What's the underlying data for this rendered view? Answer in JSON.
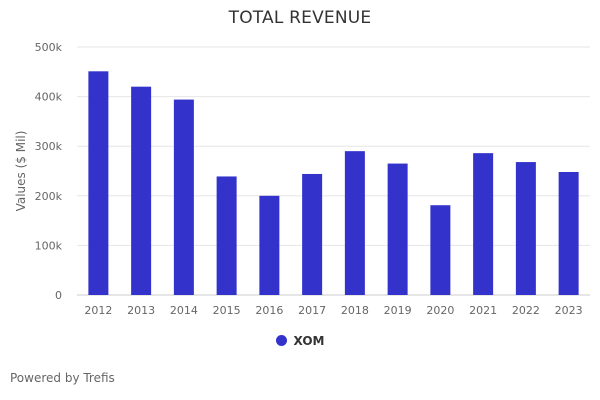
{
  "chart_data": {
    "type": "bar",
    "title": "TOTAL REVENUE",
    "xlabel": "",
    "ylabel": "Values ($ Mil)",
    "categories": [
      "2012",
      "2013",
      "2014",
      "2015",
      "2016",
      "2017",
      "2018",
      "2019",
      "2020",
      "2021",
      "2022",
      "2023"
    ],
    "series": [
      {
        "name": "XOM",
        "color": "#3333cc",
        "values": [
          451000,
          420000,
          394000,
          239000,
          200000,
          244000,
          290000,
          265000,
          181000,
          286000,
          268000,
          248000
        ]
      }
    ],
    "ylim": [
      0,
      500000
    ],
    "yticks": [
      0,
      100000,
      200000,
      300000,
      400000,
      500000
    ],
    "ytick_labels": [
      "0",
      "100k",
      "200k",
      "300k",
      "400k",
      "500k"
    ],
    "grid": true,
    "legend_position": "bottom-center"
  },
  "footer": {
    "credit": "Powered by Trefis"
  }
}
